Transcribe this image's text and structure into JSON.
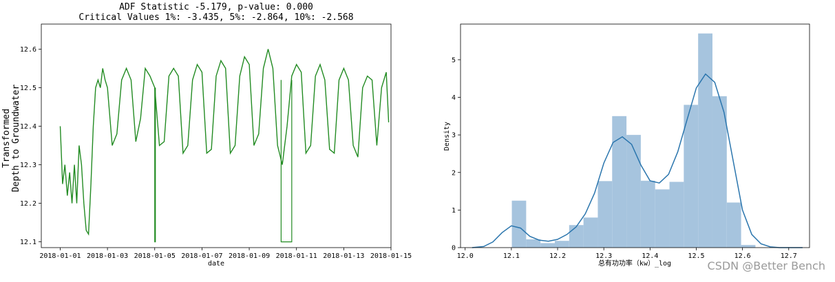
{
  "chart_data": [
    {
      "type": "line",
      "title": "ADF Statistic -5.179, p-value: 0.000",
      "subtitle": "Critical Values 1%: -3.435, 5%: -2.864, 10%: -2.568",
      "xlabel": "date",
      "ylabel": [
        "Transformed",
        "Depth to Groundwater"
      ],
      "x_ticks": [
        "2018-01-01",
        "2018-01-03",
        "2018-01-05",
        "2018-01-07",
        "2018-01-09",
        "2018-01-11",
        "2018-01-13",
        "2018-01-15"
      ],
      "y_ticks": [
        "12.1",
        "12.2",
        "12.3",
        "12.4",
        "12.5",
        "12.6"
      ],
      "xlim_days": [
        -0.8,
        14.0
      ],
      "ylim": [
        12.085,
        12.665
      ],
      "color": "#228b22",
      "daily_pattern": {
        "high": 12.55,
        "low": 12.34,
        "dip_day_fraction": 0.55
      },
      "drops": [
        {
          "day": 4.0,
          "to": 12.1
        },
        {
          "day_start": 9.35,
          "day_end": 9.8,
          "to": 12.1
        }
      ],
      "series": [
        {
          "x": [
            0.0,
            0.1,
            0.2,
            0.3,
            0.4,
            0.5,
            0.6,
            0.7,
            0.8,
            0.9,
            1.0,
            1.1,
            1.2,
            1.3,
            1.4,
            1.5,
            1.6,
            1.7,
            1.8,
            1.9,
            2.0,
            2.2,
            2.4,
            2.6,
            2.8,
            3.0,
            3.2,
            3.4,
            3.6,
            3.8,
            4.0,
            4.2,
            4.4,
            4.6,
            4.8,
            5.0,
            5.2,
            5.4,
            5.6,
            5.8,
            6.0,
            6.2,
            6.4,
            6.6,
            6.8,
            7.0,
            7.2,
            7.4,
            7.6,
            7.8,
            8.0,
            8.2,
            8.4,
            8.6,
            8.8,
            9.0,
            9.2,
            9.4,
            9.6,
            9.8,
            10.0,
            10.2,
            10.4,
            10.6,
            10.8,
            11.0,
            11.2,
            11.4,
            11.6,
            11.8,
            12.0,
            12.2,
            12.4,
            12.6,
            12.8,
            13.0,
            13.2,
            13.4,
            13.6,
            13.8,
            13.9
          ],
          "y": [
            12.4,
            12.25,
            12.3,
            12.22,
            12.28,
            12.2,
            12.3,
            12.2,
            12.35,
            12.3,
            12.2,
            12.13,
            12.12,
            12.25,
            12.4,
            12.5,
            12.52,
            12.5,
            12.55,
            12.52,
            12.5,
            12.35,
            12.38,
            12.52,
            12.55,
            12.52,
            12.36,
            12.42,
            12.55,
            12.53,
            12.5,
            12.35,
            12.36,
            12.53,
            12.55,
            12.53,
            12.33,
            12.35,
            12.52,
            12.56,
            12.54,
            12.33,
            12.34,
            12.53,
            12.57,
            12.55,
            12.33,
            12.35,
            12.53,
            12.58,
            12.56,
            12.35,
            12.38,
            12.55,
            12.6,
            12.55,
            12.35,
            12.3,
            12.4,
            12.53,
            12.56,
            12.54,
            12.33,
            12.35,
            12.53,
            12.56,
            12.52,
            12.34,
            12.33,
            12.52,
            12.55,
            12.52,
            12.35,
            12.32,
            12.5,
            12.53,
            12.52,
            12.35,
            12.5,
            12.54,
            12.41
          ]
        }
      ]
    },
    {
      "type": "bar",
      "title": "",
      "xlabel": "总有功功率（kw）_log",
      "ylabel": "Density",
      "x_ticks": [
        "12.0",
        "12.1",
        "12.2",
        "12.3",
        "12.4",
        "12.5",
        "12.6",
        "12.7"
      ],
      "y_ticks": [
        "0",
        "1",
        "2",
        "3",
        "4",
        "5"
      ],
      "xlim": [
        11.99,
        12.745
      ],
      "ylim": [
        0,
        5.95
      ],
      "bar_color": "#a6c4de",
      "line_color": "#2a75ad",
      "bin_edges": [
        12.101,
        12.132,
        12.163,
        12.194,
        12.225,
        12.256,
        12.287,
        12.318,
        12.349,
        12.38,
        12.411,
        12.442,
        12.473,
        12.504,
        12.535,
        12.566,
        12.597,
        12.628,
        12.659
      ],
      "values": [
        1.25,
        0.22,
        0.12,
        0.18,
        0.6,
        0.8,
        1.77,
        3.5,
        3.0,
        1.78,
        1.55,
        1.75,
        3.8,
        5.7,
        4.03,
        1.2,
        0.07,
        0.0
      ],
      "kde": {
        "x": [
          12.015,
          12.04,
          12.06,
          12.08,
          12.1,
          12.12,
          12.14,
          12.16,
          12.18,
          12.2,
          12.22,
          12.24,
          12.26,
          12.28,
          12.3,
          12.32,
          12.34,
          12.36,
          12.38,
          12.4,
          12.42,
          12.44,
          12.46,
          12.48,
          12.5,
          12.52,
          12.54,
          12.56,
          12.58,
          12.6,
          12.62,
          12.64,
          12.66,
          12.68,
          12.7,
          12.72,
          12.73
        ],
        "y": [
          0.0,
          0.03,
          0.15,
          0.4,
          0.58,
          0.52,
          0.3,
          0.2,
          0.17,
          0.22,
          0.35,
          0.55,
          0.9,
          1.45,
          2.25,
          2.8,
          2.95,
          2.75,
          2.2,
          1.78,
          1.72,
          1.95,
          2.55,
          3.4,
          4.25,
          4.62,
          4.4,
          3.6,
          2.3,
          1.0,
          0.35,
          0.1,
          0.02,
          0.0,
          0.0,
          0.0,
          0.0
        ]
      }
    }
  ],
  "watermark": "CSDN @Better Bench"
}
